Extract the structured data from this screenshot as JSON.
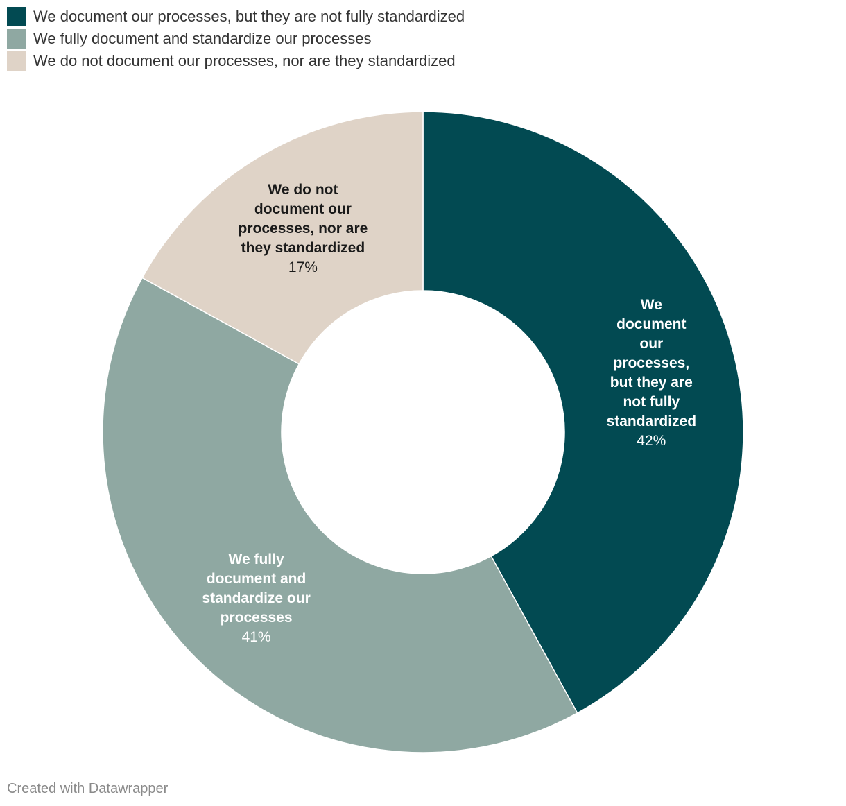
{
  "legend": {
    "items": [
      {
        "label": "We document our processes, but they are not fully standardized",
        "color": "#024a52"
      },
      {
        "label": "We fully document and standardize our processes",
        "color": "#8fa8a2"
      },
      {
        "label": "We do not document our processes, nor are they standardized",
        "color": "#dfd3c7"
      }
    ]
  },
  "chart_data": {
    "type": "pie",
    "variant": "donut",
    "slices": [
      {
        "name": "We document our processes, but they are not fully standardized",
        "label_lines": [
          "We",
          "document",
          "our",
          "processes,",
          "but they are",
          "not fully",
          "standardized"
        ],
        "value": 42,
        "value_label": "42%",
        "color": "#024a52",
        "text_color": "#ffffff"
      },
      {
        "name": "We fully document and standardize our processes",
        "label_lines": [
          "We fully",
          "document and",
          "standardize our",
          "processes"
        ],
        "value": 41,
        "value_label": "41%",
        "color": "#8fa8a2",
        "text_color": "#ffffff"
      },
      {
        "name": "We do not document our processes, nor are they standardized",
        "label_lines": [
          "We do not",
          "document our",
          "processes, nor are",
          "they standardized"
        ],
        "value": 17,
        "value_label": "17%",
        "color": "#dfd3c7",
        "text_color": "#1a1a1a"
      }
    ],
    "start_angle": "12 o'clock",
    "direction": "clockwise",
    "legend_position": "top-left"
  },
  "footer": {
    "credit": "Created with Datawrapper"
  }
}
